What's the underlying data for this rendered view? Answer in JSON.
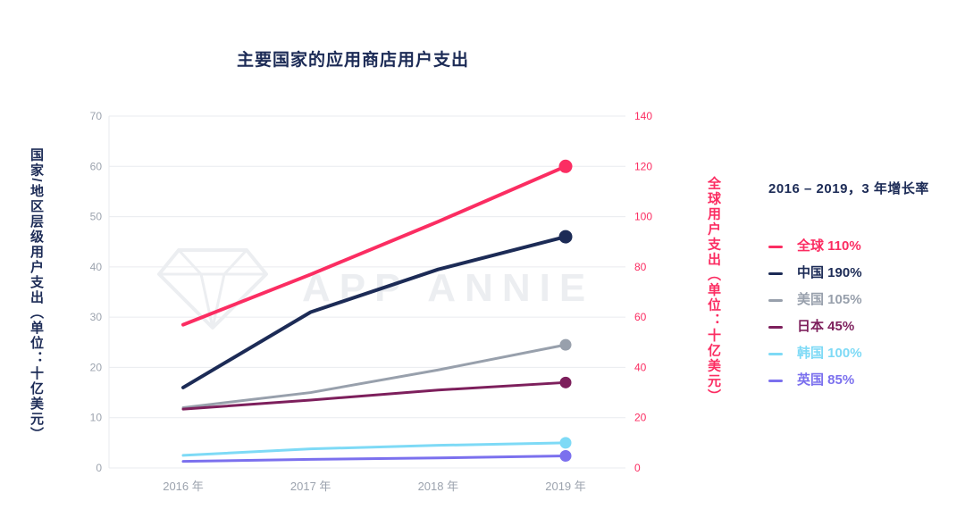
{
  "chart_data": {
    "type": "line",
    "title": "主要国家的应用商店用户支出",
    "x_categories": [
      "2016 年",
      "2017 年",
      "2018 年",
      "2019 年"
    ],
    "left_axis": {
      "label": "国家/地区层级用户支出（单位：十亿美元）",
      "min": 0,
      "max": 70,
      "step": 10
    },
    "right_axis": {
      "label": "全球用户支出（单位：十亿美元）",
      "min": 0,
      "max": 140,
      "step": 20
    },
    "legend_title": "2016 – 2019，3 年增长率",
    "watermark": "APP ANNIE",
    "grid": true,
    "colors": {
      "title": "#1C2B56",
      "axis_text": "#9CA3AE",
      "gridline": "#E9EBEF",
      "watermark": "#ECEEF1",
      "right_axis_accent": "#FB2D62"
    },
    "series": [
      {
        "name": "全球",
        "growth": "110%",
        "color": "#FB2D62",
        "axis": "right",
        "values": [
          57,
          77,
          98,
          120
        ]
      },
      {
        "name": "中国",
        "growth": "190%",
        "color": "#1C2B56",
        "axis": "left",
        "values": [
          16,
          31,
          39.5,
          46
        ]
      },
      {
        "name": "美国",
        "growth": "105%",
        "color": "#98A0AC",
        "axis": "left",
        "values": [
          12,
          15,
          19.5,
          24.5
        ]
      },
      {
        "name": "日本",
        "growth": "45%",
        "color": "#7D1F5C",
        "axis": "left",
        "values": [
          11.7,
          13.5,
          15.5,
          17
        ]
      },
      {
        "name": "韩国",
        "growth": "100%",
        "color": "#7EDAF6",
        "axis": "left",
        "values": [
          2.5,
          3.8,
          4.5,
          5
        ]
      },
      {
        "name": "英国",
        "growth": "85%",
        "color": "#7B70EE",
        "axis": "left",
        "values": [
          1.3,
          1.7,
          2.0,
          2.4
        ]
      }
    ]
  }
}
